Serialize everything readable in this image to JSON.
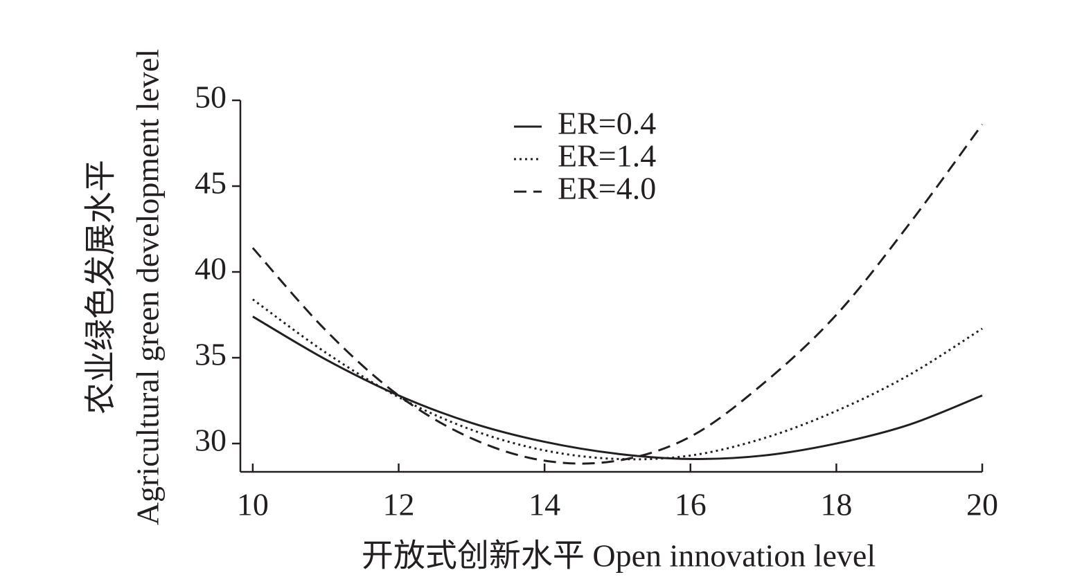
{
  "chart_data": {
    "type": "line",
    "x_label": "开放式创新水平 Open innovation level",
    "y_label": [
      "农业绿色发展水平",
      "Agricultural green development level"
    ],
    "x": [
      10,
      11,
      12,
      13,
      14,
      15,
      16,
      17,
      18,
      19,
      20
    ],
    "series": [
      {
        "name": "ER=0.4",
        "color": "#231f20",
        "style": "solid",
        "values": [
          37.4,
          34.9,
          32.8,
          31.2,
          30.1,
          29.4,
          29.1,
          29.3,
          30.0,
          31.1,
          32.8
        ]
      },
      {
        "name": "ER=1.4",
        "color": "#231f20",
        "style": "dotted",
        "values": [
          38.4,
          35.3,
          32.7,
          30.8,
          29.6,
          29.1,
          29.3,
          30.3,
          31.9,
          34.0,
          36.7
        ]
      },
      {
        "name": "ER=4.0",
        "color": "#231f20",
        "style": "dashed",
        "values": [
          41.4,
          36.6,
          32.8,
          30.3,
          29.0,
          29.0,
          30.4,
          33.5,
          37.5,
          42.8,
          48.6
        ]
      }
    ],
    "xlim": [
      9.83,
      20
    ],
    "ylim": [
      28.35,
      50
    ],
    "xticks": [
      10,
      12,
      14,
      16,
      18,
      20
    ],
    "yticks": [
      30,
      35,
      40,
      45,
      50
    ],
    "grid": false,
    "legend": "top-center"
  }
}
